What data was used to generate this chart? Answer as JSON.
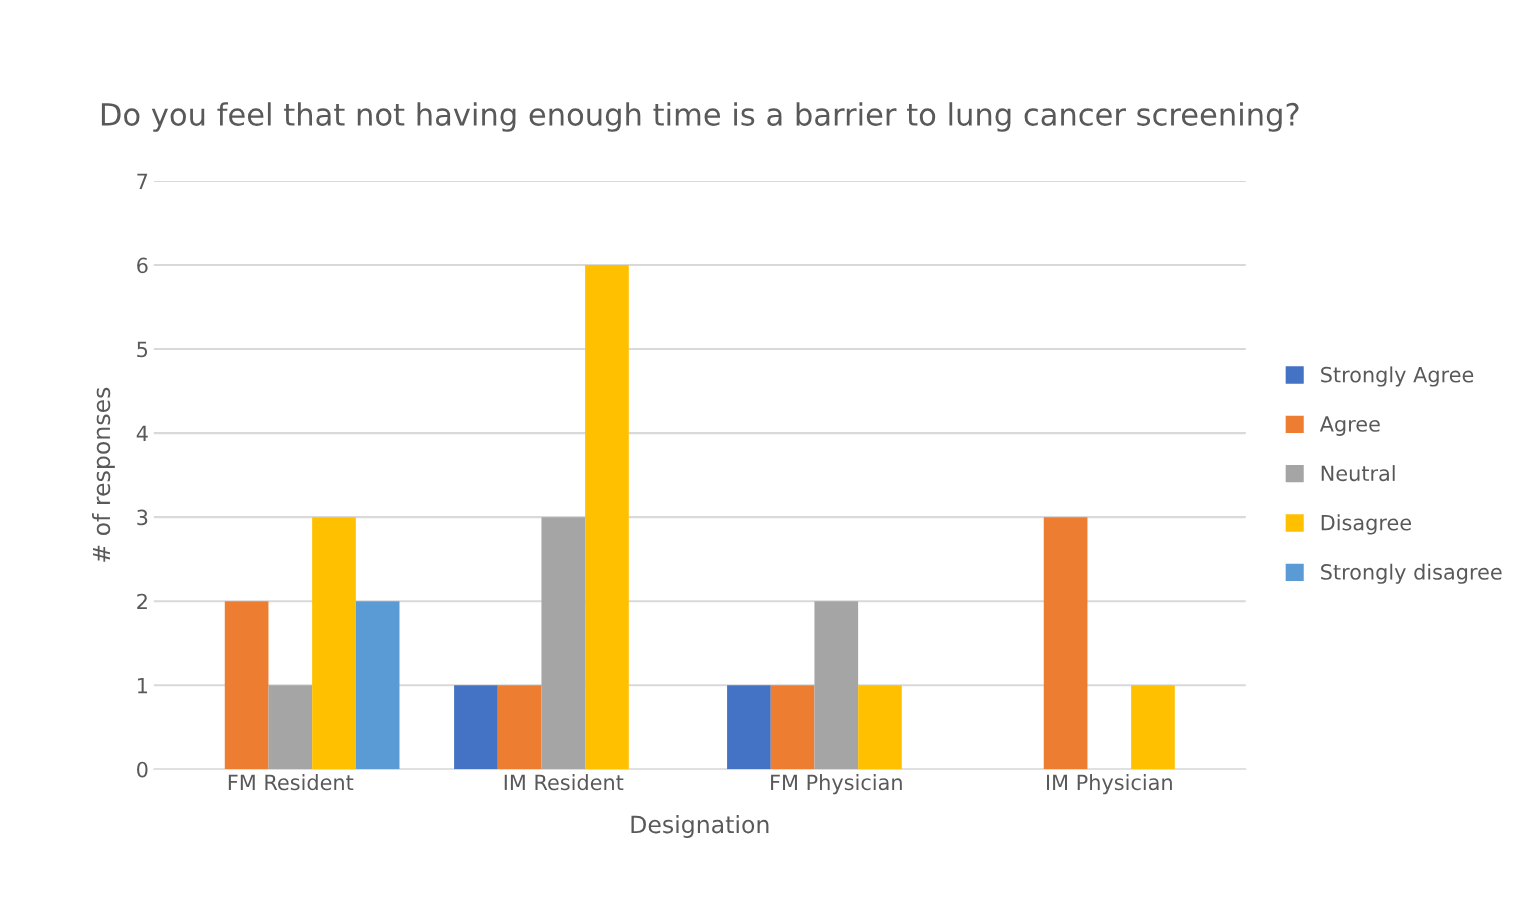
{
  "chart_data": {
    "type": "bar",
    "title": "Do you feel that not having enough time is a barrier to lung cancer screening?",
    "xlabel": "Designation",
    "ylabel": "# of responses",
    "categories": [
      "FM Resident",
      "IM Resident",
      "FM Physician",
      "IM Physician"
    ],
    "series": [
      {
        "name": "Strongly Agree",
        "color": "#4472c4",
        "values": [
          0,
          1,
          1,
          0
        ]
      },
      {
        "name": "Agree",
        "color": "#ed7d31",
        "values": [
          2,
          1,
          1,
          3
        ]
      },
      {
        "name": "Neutral",
        "color": "#a5a5a5",
        "values": [
          1,
          3,
          2,
          0
        ]
      },
      {
        "name": "Disagree",
        "color": "#ffc000",
        "values": [
          3,
          6,
          1,
          1
        ]
      },
      {
        "name": "Strongly disagree",
        "color": "#5b9bd5",
        "values": [
          2,
          0,
          0,
          0
        ]
      }
    ],
    "ylim": [
      0,
      7
    ],
    "yticks": [
      0,
      1,
      2,
      3,
      4,
      5,
      6,
      7
    ],
    "grid": "y",
    "legend": "right"
  }
}
